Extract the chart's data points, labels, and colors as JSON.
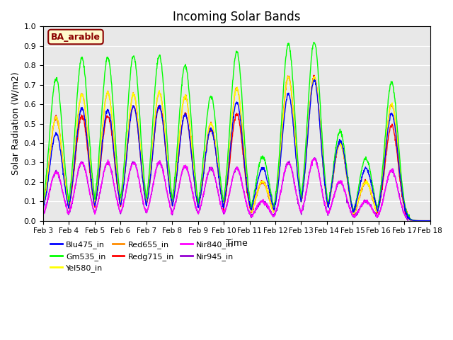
{
  "title": "Incoming Solar Bands",
  "xlabel": "Time",
  "ylabel": "Solar Radiation (W/m2)",
  "annotation_text": "BA_arable",
  "annotation_color": "#8B0000",
  "annotation_bg": "#FFFACD",
  "background_color": "#E8E8E8",
  "ylim": [
    0,
    1.0
  ],
  "yticks": [
    0.0,
    0.1,
    0.2,
    0.3,
    0.4,
    0.5,
    0.6,
    0.7,
    0.8,
    0.9,
    1.0
  ],
  "series": {
    "Blu475_in": {
      "color": "#0000FF",
      "lw": 1.0
    },
    "Gm535_in": {
      "color": "#00FF00",
      "lw": 1.0
    },
    "Yel580_in": {
      "color": "#FFFF00",
      "lw": 1.0
    },
    "Red655_in": {
      "color": "#FF8C00",
      "lw": 1.0
    },
    "Redg715_in": {
      "color": "#FF0000",
      "lw": 1.0
    },
    "Nir840_in": {
      "color": "#FF00FF",
      "lw": 1.0
    },
    "Nir945_in": {
      "color": "#9400D3",
      "lw": 1.0
    }
  },
  "x_tick_labels": [
    "Feb 3",
    "Feb 4",
    "Feb 5",
    "Feb 6",
    "Feb 7",
    "Feb 8",
    "Feb 9",
    "Feb 10",
    "Feb 11",
    "Feb 12",
    "Feb 13",
    "Feb 14",
    "Feb 15",
    "Feb 16",
    "Feb 17",
    "Feb 18"
  ],
  "num_days": 15,
  "points_per_day": 96,
  "day_peaks": {
    "Gm535_in": [
      0.73,
      0.84,
      0.84,
      0.85,
      0.85,
      0.8,
      0.64,
      0.87,
      0.33,
      0.91,
      0.92,
      0.46,
      0.32,
      0.71,
      0.0
    ],
    "Blu475_in": [
      0.45,
      0.58,
      0.57,
      0.59,
      0.59,
      0.55,
      0.47,
      0.61,
      0.27,
      0.65,
      0.72,
      0.41,
      0.27,
      0.55,
      0.0
    ],
    "Yel580_in": [
      0.53,
      0.65,
      0.66,
      0.65,
      0.66,
      0.64,
      0.5,
      0.68,
      0.2,
      0.74,
      0.74,
      0.4,
      0.2,
      0.6,
      0.0
    ],
    "Red655_in": [
      0.53,
      0.65,
      0.66,
      0.65,
      0.66,
      0.64,
      0.5,
      0.68,
      0.2,
      0.74,
      0.74,
      0.4,
      0.2,
      0.6,
      0.0
    ],
    "Redg715_in": [
      0.53,
      0.54,
      0.54,
      0.59,
      0.59,
      0.55,
      0.47,
      0.55,
      0.2,
      0.74,
      0.74,
      0.4,
      0.2,
      0.49,
      0.0
    ],
    "Nir840_in": [
      0.25,
      0.3,
      0.3,
      0.3,
      0.3,
      0.28,
      0.27,
      0.27,
      0.1,
      0.3,
      0.32,
      0.2,
      0.1,
      0.26,
      0.0
    ],
    "Nir945_in": [
      0.25,
      0.3,
      0.3,
      0.3,
      0.3,
      0.28,
      0.27,
      0.27,
      0.1,
      0.3,
      0.32,
      0.2,
      0.1,
      0.26,
      0.0
    ]
  }
}
